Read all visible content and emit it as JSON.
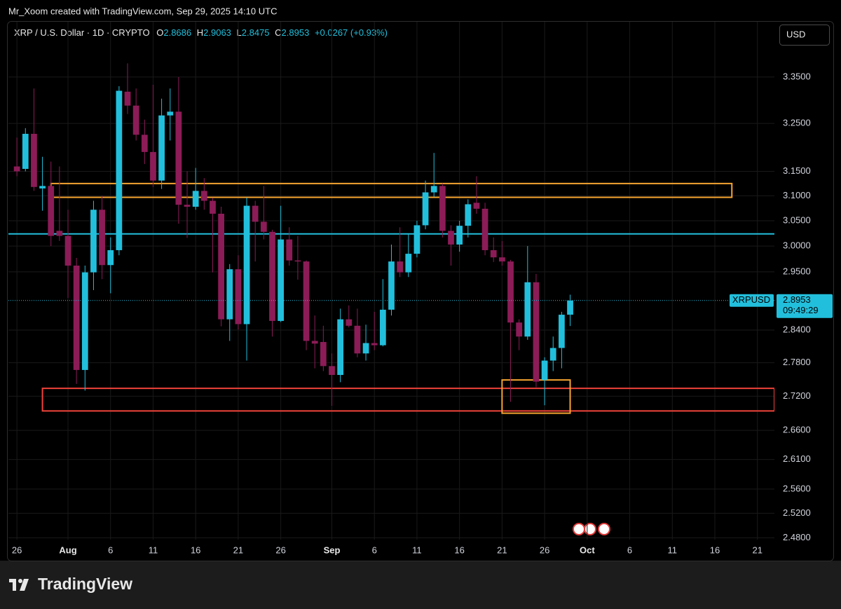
{
  "chart_data": {
    "type": "candlestick",
    "header": "Mr_Xoom created with TradingView.com, Sep 29, 2025 14:10 UTC",
    "symbol": "XRP / U.S. Dollar · 1D · CRYPTO",
    "ohlc_labels": [
      "O",
      "H",
      "L",
      "C"
    ],
    "change": "+0.0267 (+0.93%)",
    "currency": "USD",
    "symbol_tag": "XRPUSD",
    "countdown": "09:49:29",
    "brand": "TradingView",
    "up_color": "#22bfdc",
    "down_color": "#8c1c57",
    "log_scale": true,
    "grid": true,
    "x": [
      "2025-07-26",
      "2025-07-27",
      "2025-07-28",
      "2025-07-29",
      "2025-07-30",
      "2025-07-31",
      "2025-08-01",
      "2025-08-02",
      "2025-08-03",
      "2025-08-04",
      "2025-08-05",
      "2025-08-06",
      "2025-08-07",
      "2025-08-08",
      "2025-08-09",
      "2025-08-10",
      "2025-08-11",
      "2025-08-12",
      "2025-08-13",
      "2025-08-14",
      "2025-08-15",
      "2025-08-16",
      "2025-08-17",
      "2025-08-18",
      "2025-08-19",
      "2025-08-20",
      "2025-08-21",
      "2025-08-22",
      "2025-08-23",
      "2025-08-24",
      "2025-08-25",
      "2025-08-26",
      "2025-08-27",
      "2025-08-28",
      "2025-08-29",
      "2025-08-30",
      "2025-08-31",
      "2025-09-01",
      "2025-09-02",
      "2025-09-03",
      "2025-09-04",
      "2025-09-05",
      "2025-09-06",
      "2025-09-07",
      "2025-09-08",
      "2025-09-09",
      "2025-09-10",
      "2025-09-11",
      "2025-09-12",
      "2025-09-13",
      "2025-09-14",
      "2025-09-15",
      "2025-09-16",
      "2025-09-17",
      "2025-09-18",
      "2025-09-19",
      "2025-09-20",
      "2025-09-21",
      "2025-09-22",
      "2025-09-23",
      "2025-09-24",
      "2025-09-25",
      "2025-09-26",
      "2025-09-27",
      "2025-09-28",
      "2025-09-29"
    ],
    "open": [
      3.16,
      3.155,
      3.228,
      3.115,
      3.12,
      3.03,
      3.02,
      2.962,
      2.767,
      2.949,
      3.072,
      2.963,
      2.992,
      3.318,
      3.288,
      3.226,
      3.19,
      3.131,
      3.267,
      3.275,
      3.082,
      3.078,
      3.11,
      3.09,
      3.064,
      2.86,
      2.955,
      2.851,
      3.08,
      3.048,
      3.028,
      2.857,
      3.013,
      2.972,
      2.97,
      2.82,
      2.818,
      2.774,
      2.758,
      2.86,
      2.848,
      2.797,
      2.816,
      2.812,
      2.878,
      2.97,
      2.949,
      2.985,
      3.041,
      3.107,
      3.12,
      3.03,
      3.003,
      3.04,
      3.086,
      3.074,
      2.992,
      2.978,
      2.97,
      2.854,
      2.828,
      2.93,
      2.749,
      2.784,
      2.807,
      2.8686
    ],
    "high": [
      3.22,
      3.24,
      3.325,
      3.18,
      3.17,
      3.16,
      3.072,
      2.977,
      2.962,
      3.09,
      3.1,
      3.017,
      3.33,
      3.38,
      3.325,
      3.258,
      3.333,
      3.303,
      3.325,
      3.35,
      3.15,
      3.157,
      3.136,
      3.096,
      3.078,
      2.965,
      2.982,
      3.096,
      3.09,
      3.12,
      3.032,
      3.08,
      3.037,
      3.02,
      2.972,
      2.867,
      2.848,
      2.797,
      2.88,
      2.886,
      2.88,
      2.85,
      2.874,
      2.936,
      3.003,
      3.037,
      3.023,
      3.05,
      3.131,
      3.188,
      3.125,
      3.041,
      3.05,
      3.093,
      3.14,
      3.086,
      3.017,
      3.01,
      2.973,
      2.86,
      3.0,
      2.946,
      2.79,
      2.828,
      2.874,
      2.9063
    ],
    "low": [
      3.14,
      3.15,
      3.11,
      3.07,
      3.0,
      3.01,
      2.9,
      2.742,
      2.73,
      2.915,
      2.936,
      2.909,
      2.982,
      3.27,
      3.214,
      3.165,
      3.118,
      3.114,
      3.214,
      3.044,
      3.016,
      3.072,
      3.072,
      2.949,
      2.847,
      2.82,
      2.841,
      2.784,
      2.97,
      3.013,
      2.828,
      2.855,
      2.962,
      2.935,
      2.803,
      2.77,
      2.765,
      2.703,
      2.745,
      2.845,
      2.79,
      2.784,
      2.803,
      2.81,
      2.867,
      2.94,
      2.94,
      2.978,
      3.033,
      3.098,
      3.017,
      2.962,
      2.989,
      3.017,
      3.064,
      2.982,
      2.969,
      2.962,
      2.71,
      2.803,
      2.822,
      2.736,
      2.704,
      2.765,
      2.77,
      2.8475
    ],
    "close": [
      3.15,
      3.228,
      3.118,
      3.12,
      3.02,
      3.02,
      2.962,
      2.767,
      2.949,
      3.072,
      2.963,
      2.992,
      3.32,
      3.288,
      3.226,
      3.19,
      3.131,
      3.267,
      3.275,
      3.082,
      3.078,
      3.11,
      3.09,
      3.064,
      2.86,
      2.955,
      2.851,
      3.08,
      3.048,
      3.028,
      2.857,
      3.013,
      2.972,
      2.97,
      2.82,
      2.815,
      2.774,
      2.758,
      2.86,
      2.848,
      2.797,
      2.816,
      2.812,
      2.878,
      2.97,
      2.949,
      2.985,
      3.041,
      3.107,
      3.12,
      3.03,
      3.003,
      3.04,
      3.083,
      3.074,
      2.992,
      2.978,
      2.97,
      2.854,
      2.828,
      2.93,
      2.746,
      2.784,
      2.807,
      2.8686,
      2.8953
    ],
    "xlim": [
      "2025-07-25",
      "2025-10-23"
    ],
    "xticks": [
      {
        "value": "2025-07-26",
        "label": "26"
      },
      {
        "value": "2025-08-01",
        "label": "Aug"
      },
      {
        "value": "2025-08-06",
        "label": "6"
      },
      {
        "value": "2025-08-11",
        "label": "11"
      },
      {
        "value": "2025-08-16",
        "label": "16"
      },
      {
        "value": "2025-08-21",
        "label": "21"
      },
      {
        "value": "2025-08-26",
        "label": "26"
      },
      {
        "value": "2025-09-01",
        "label": "Sep"
      },
      {
        "value": "2025-09-06",
        "label": "6"
      },
      {
        "value": "2025-09-11",
        "label": "11"
      },
      {
        "value": "2025-09-16",
        "label": "16"
      },
      {
        "value": "2025-09-21",
        "label": "21"
      },
      {
        "value": "2025-09-26",
        "label": "26"
      },
      {
        "value": "2025-10-01",
        "label": "Oct"
      },
      {
        "value": "2025-10-06",
        "label": "6"
      },
      {
        "value": "2025-10-11",
        "label": "11"
      },
      {
        "value": "2025-10-16",
        "label": "16"
      },
      {
        "value": "2025-10-21",
        "label": "21"
      }
    ],
    "ylim": [
      2.477,
      3.473
    ],
    "yticks": [
      {
        "value": 3.35,
        "label": "3.3500"
      },
      {
        "value": 3.25,
        "label": "3.2500"
      },
      {
        "value": 3.15,
        "label": "3.1500"
      },
      {
        "value": 3.1,
        "label": "3.1000"
      },
      {
        "value": 3.05,
        "label": "3.0500"
      },
      {
        "value": 3.0,
        "label": "3.0000"
      },
      {
        "value": 2.95,
        "label": "2.9500"
      },
      {
        "value": 2.84,
        "label": "2.8400"
      },
      {
        "value": 2.78,
        "label": "2.7800"
      },
      {
        "value": 2.72,
        "label": "2.7200"
      },
      {
        "value": 2.66,
        "label": "2.6600"
      },
      {
        "value": 2.61,
        "label": "2.6100"
      },
      {
        "value": 2.56,
        "label": "2.5600"
      },
      {
        "value": 2.52,
        "label": "2.5200"
      },
      {
        "value": 2.48,
        "label": "2.4800"
      }
    ],
    "shapes": [
      {
        "type": "rect",
        "color": "#f7a531",
        "x": [
          "2025-07-30",
          "2025-10-18"
        ],
        "y": [
          3.097,
          3.125
        ]
      },
      {
        "type": "rect",
        "color": "#f0433a",
        "x": [
          "2025-07-29",
          "2025-10-23"
        ],
        "y": [
          2.694,
          2.734
        ]
      },
      {
        "type": "rect",
        "color": "#f7a531",
        "x": [
          "2025-09-21",
          "2025-09-29"
        ],
        "y": [
          2.69,
          2.749
        ]
      },
      {
        "type": "hline",
        "color": "#22bfdc",
        "y": 3.024
      }
    ]
  }
}
